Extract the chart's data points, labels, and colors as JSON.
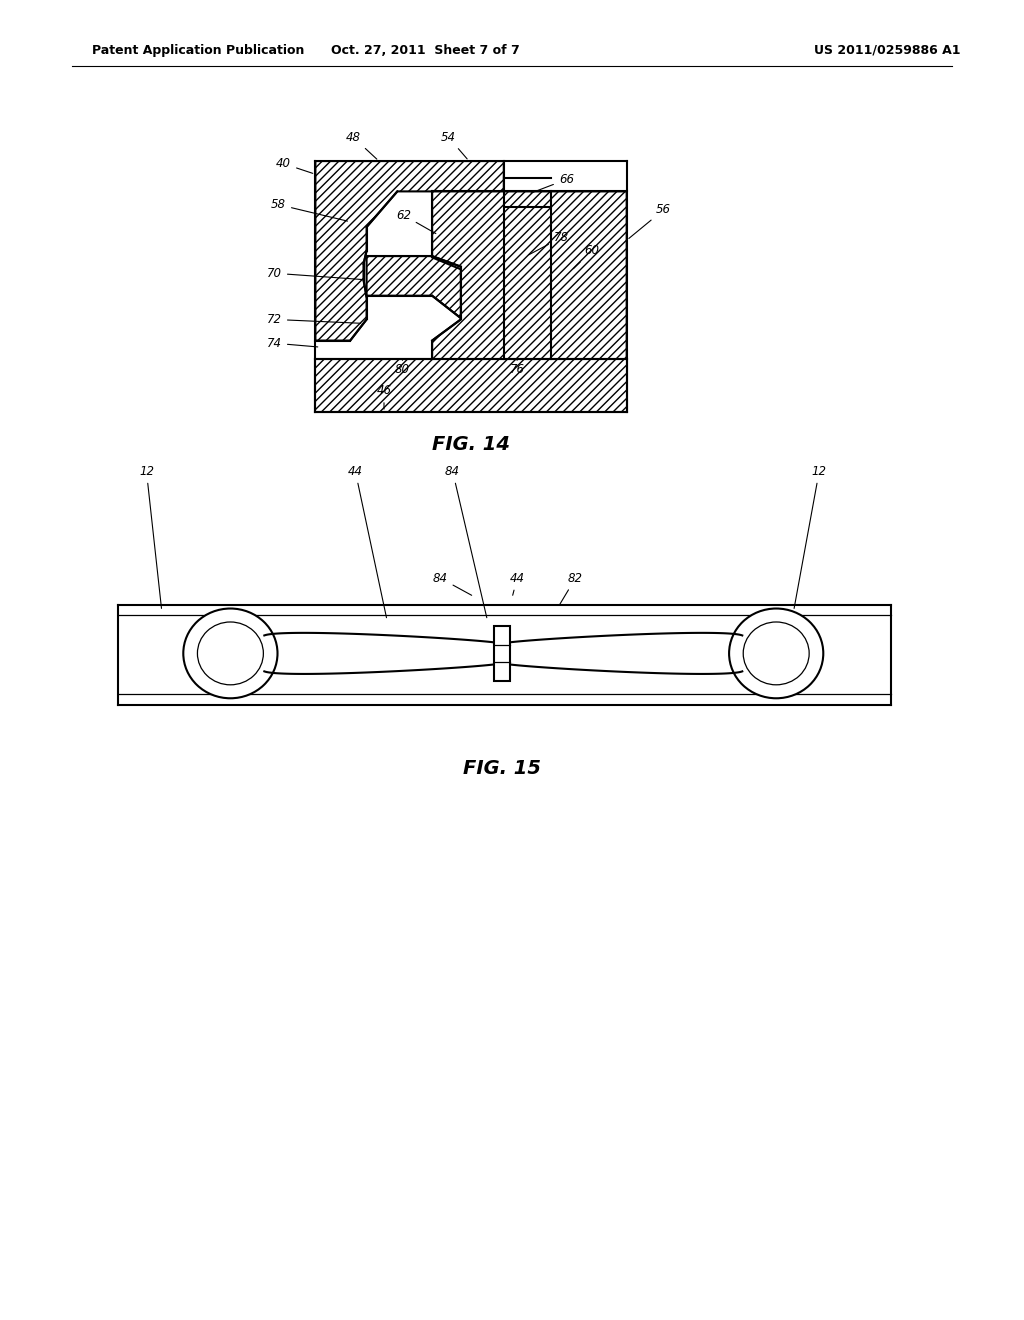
{
  "header_left": "Patent Application Publication",
  "header_mid": "Oct. 27, 2011  Sheet 7 of 7",
  "header_right": "US 2011/0259886 A1",
  "fig14_caption": "FIG. 14",
  "fig15_caption": "FIG. 15",
  "bg": "#ffffff",
  "lc": "#000000"
}
